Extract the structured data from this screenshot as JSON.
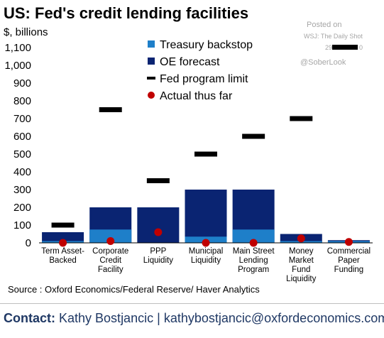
{
  "title": "US: Fed's credit lending facilities",
  "unit_label": "$, billions",
  "watermark": {
    "posted": "Posted on",
    "source": "WSJ: The Daily Shot",
    "date_prefix": "29",
    "date_suffix": "0",
    "handle": "@SoberLook"
  },
  "colors": {
    "treasury": "#1e7fc9",
    "oe_forecast": "#0a2472",
    "limit": "#000000",
    "actual": "#c00000"
  },
  "chart_data": {
    "type": "bar",
    "ylim": [
      0,
      1100
    ],
    "yticks": [
      "0",
      "100",
      "200",
      "300",
      "400",
      "500",
      "600",
      "700",
      "800",
      "900",
      "1,000",
      "1,100"
    ],
    "ytick_values": [
      0,
      100,
      200,
      300,
      400,
      500,
      600,
      700,
      800,
      900,
      1000,
      1100
    ],
    "categories": [
      [
        "Term Asset-",
        "Backed"
      ],
      [
        "Corporate",
        "Credit",
        "Facility"
      ],
      [
        "PPP",
        "Liquidity"
      ],
      [
        "Municipal",
        "Liquidity"
      ],
      [
        "Main Street",
        "Lending",
        "Program"
      ],
      [
        "Money",
        "Market",
        "Fund",
        "Liquidity"
      ],
      [
        "Commercial",
        "Paper",
        "Funding"
      ]
    ],
    "series": [
      {
        "name": "Treasury backstop",
        "kind": "bar",
        "values": [
          10,
          75,
          0,
          35,
          75,
          10,
          10
        ]
      },
      {
        "name": "OE forecast",
        "kind": "bar",
        "values": [
          60,
          200,
          200,
          300,
          300,
          50,
          15
        ]
      },
      {
        "name": "Fed program limit",
        "kind": "marker-line",
        "values": [
          100,
          750,
          350,
          500,
          600,
          700,
          null
        ]
      },
      {
        "name": "Actual thus far",
        "kind": "marker-dot",
        "values": [
          0,
          10,
          60,
          0,
          0,
          25,
          5
        ]
      }
    ],
    "legend": [
      "Treasury backstop",
      "OE forecast",
      "Fed program limit",
      "Actual thus far"
    ],
    "legend_position": "top-center",
    "grid": false
  },
  "source": "Source : Oxford Economics/Federal Reserve/ Haver Analytics",
  "contact": {
    "label": "Contact:",
    "name": "Kathy Bostjancic",
    "separator": "|",
    "email": "kathybostjancic@oxfordeconomics.com"
  }
}
